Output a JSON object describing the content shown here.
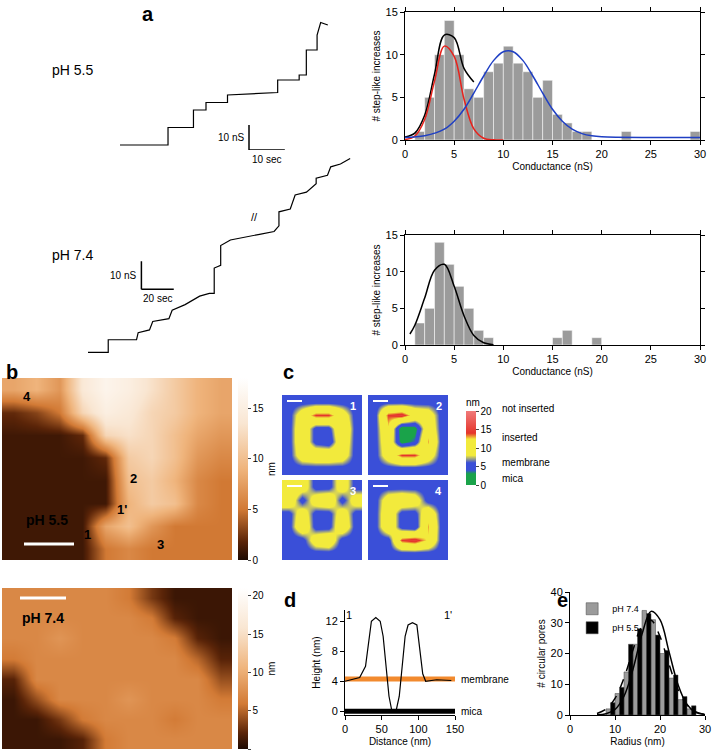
{
  "chart_data": [
    {
      "panel": "a",
      "type": "line",
      "label": "pH 5.5",
      "color": "#000000",
      "x": [
        0,
        13.4,
        13.4,
        20.5,
        20.5,
        24,
        24,
        30,
        30,
        44,
        44,
        50,
        50,
        52,
        52,
        55,
        55,
        56,
        58
      ],
      "values": [
        0,
        0,
        7,
        7,
        14,
        14,
        17,
        17,
        20,
        21,
        26,
        26,
        28,
        28,
        38,
        38,
        44,
        49,
        48
      ],
      "xlim": [
        0,
        60
      ],
      "ylim": [
        -2,
        52
      ],
      "tick_labels": false,
      "scale_bar": {
        "x": 10,
        "y": 10,
        "x_label": "10 sec",
        "y_label": "10 nS"
      }
    },
    {
      "type": "line",
      "label": "pH 7.4",
      "color": "#000000",
      "x": [
        0,
        12.5,
        12.5,
        30,
        31,
        38,
        40,
        50,
        52,
        60,
        69,
        75,
        78,
        78,
        82,
        82,
        88,
        96,
        106,
        115,
        118,
        118,
        125,
        128,
        135,
        141,
        141,
        148,
        150,
        156,
        162
      ],
      "values": [
        0,
        0,
        4.5,
        4.5,
        7,
        8,
        11,
        12,
        15,
        17,
        20,
        21,
        21,
        30,
        31,
        38,
        40,
        41,
        42,
        43,
        45,
        50,
        51,
        56,
        57,
        60,
        62,
        63,
        66,
        67,
        69
      ],
      "xlim": [
        0,
        165
      ],
      "ylim": [
        -2,
        72
      ],
      "tick_labels": false,
      "scale_bar": {
        "x": 20,
        "y": 10,
        "x_label": "20 sec",
        "y_label": "10 nS"
      },
      "annotations": [
        {
          "text": "//",
          "x": 103,
          "y": 48
        }
      ]
    },
    {
      "type": "histogram",
      "color": "#9b9b9b",
      "bins": [
        0,
        1,
        2,
        3,
        4,
        5,
        6,
        7,
        8,
        9,
        10,
        11,
        12,
        13,
        14,
        15,
        16,
        17,
        18,
        19,
        20,
        21,
        22,
        23,
        24,
        25,
        26,
        27,
        28,
        29,
        30
      ],
      "values": [
        0,
        1,
        5,
        10,
        14,
        10,
        6,
        5,
        8,
        9,
        11,
        9,
        8,
        5,
        7,
        3,
        2,
        1,
        1,
        0,
        0,
        0,
        1,
        0,
        0,
        0,
        0,
        0,
        0,
        1
      ],
      "fits": [
        {
          "color": "#000000",
          "x": [
            0,
            1,
            2,
            3,
            4,
            5,
            6,
            7
          ],
          "values": [
            0.35,
            0.8,
            2.9,
            7.7,
            12.3,
            12.0,
            8.4,
            6.8
          ]
        },
        {
          "color": "#e8221c",
          "x": [
            0,
            1,
            2,
            3,
            4,
            5,
            6,
            7,
            8,
            9,
            10
          ],
          "values": [
            0.05,
            0.45,
            2.4,
            6.9,
            11.0,
            9.8,
            4.8,
            1.3,
            0.2,
            0.02,
            0
          ]
        },
        {
          "color": "#1f3fc4",
          "x": [
            0,
            2,
            4,
            5,
            6,
            7,
            8,
            9,
            10,
            11,
            12,
            13,
            14,
            15,
            16,
            17,
            18,
            19,
            20,
            25,
            30
          ],
          "values": [
            0.3,
            0.49,
            1.27,
            2.2,
            3.6,
            5.5,
            7.5,
            9.3,
            10.35,
            10.35,
            9.3,
            7.5,
            5.5,
            3.6,
            2.2,
            1.27,
            0.75,
            0.49,
            0.38,
            0.3,
            0.3
          ]
        }
      ],
      "xlabel": "Conductance (nS)",
      "ylabel": "# step-like increases",
      "xlim": [
        0,
        30
      ],
      "ylim": [
        0,
        15
      ],
      "xticks": [
        0,
        5,
        10,
        15,
        20,
        25,
        30
      ],
      "yticks": [
        0,
        5,
        10,
        15
      ]
    },
    {
      "type": "histogram",
      "color": "#9b9b9b",
      "bins": [
        0,
        1,
        2,
        3,
        4,
        5,
        6,
        7,
        8,
        9,
        10,
        11,
        12,
        13,
        14,
        15,
        16,
        17,
        18,
        19,
        20,
        21,
        22,
        23,
        24,
        25,
        26,
        27,
        28,
        29,
        30
      ],
      "values": [
        0,
        3,
        5,
        14,
        11,
        8,
        5,
        2,
        1,
        0,
        0,
        0,
        0,
        0,
        0,
        1,
        2,
        0,
        0,
        1,
        0,
        0,
        0,
        0,
        0,
        0,
        0,
        0,
        0,
        0
      ],
      "fits": [
        {
          "color": "#000000",
          "x": [
            0.5,
            1,
            2,
            3,
            4,
            5,
            6,
            7,
            8,
            9
          ],
          "values": [
            1.5,
            2.7,
            6.4,
            10.2,
            11.0,
            8.0,
            4.0,
            1.3,
            0.3,
            0.05
          ]
        }
      ],
      "xlabel": "Conductance (nS)",
      "ylabel": "# step-like increases",
      "xlim": [
        0,
        30
      ],
      "ylim": [
        0,
        15
      ],
      "xticks": [
        0,
        5,
        10,
        15,
        20,
        25,
        30
      ],
      "yticks": [
        0,
        5,
        10,
        15
      ]
    },
    {
      "panel": "b",
      "type": "heatmap",
      "label": "pH 5.5",
      "cells": [
        [
          8,
          9,
          7,
          14,
          16,
          15,
          13,
          11,
          9,
          8
        ],
        [
          2,
          3,
          5,
          12,
          15,
          14,
          12,
          11,
          9,
          8
        ],
        [
          1,
          1,
          1,
          2,
          12,
          13,
          12,
          10,
          8,
          7
        ],
        [
          1,
          1,
          1,
          1,
          2,
          11,
          12,
          10,
          7,
          6
        ],
        [
          1,
          1,
          1,
          1,
          1,
          10,
          11,
          9,
          6,
          5
        ],
        [
          1,
          1,
          1,
          1,
          1,
          9,
          11,
          10,
          6,
          5
        ],
        [
          1,
          1,
          1,
          1,
          8,
          10,
          7,
          5,
          5,
          5
        ],
        [
          1,
          1,
          1,
          1,
          5,
          6,
          5,
          5,
          5,
          5
        ]
      ],
      "zlim": [
        0,
        18
      ],
      "zticks": [
        0,
        5,
        10,
        15
      ],
      "colorbar_title": "nm",
      "annotations": [
        {
          "text": "4",
          "x": 0.6,
          "y": 0.3
        },
        {
          "text": "2",
          "x": 5.2,
          "y": 3.9
        },
        {
          "text": "1",
          "x": 3.2,
          "y": 6.4
        },
        {
          "text": "1'",
          "x": 4.7,
          "y": 5.3
        },
        {
          "text": "3",
          "x": 6.4,
          "y": 6.8
        }
      ]
    },
    {
      "type": "heatmap",
      "label": "pH 7.4",
      "cells": [
        [
          7,
          7,
          7,
          7,
          7,
          6,
          3,
          1,
          1,
          1
        ],
        [
          7,
          7,
          7,
          7,
          7,
          7,
          6,
          2,
          1,
          1
        ],
        [
          7,
          7,
          8,
          7,
          7,
          7,
          7,
          6,
          2,
          1
        ],
        [
          6,
          7,
          7,
          7,
          7,
          7,
          7,
          7,
          5,
          2
        ],
        [
          2,
          7,
          7,
          7,
          7,
          7,
          7,
          7,
          7,
          4
        ],
        [
          1,
          4,
          7,
          7,
          7,
          8,
          7,
          7,
          7,
          6
        ],
        [
          1,
          1,
          3,
          6,
          7,
          7,
          7,
          6,
          7,
          7
        ],
        [
          1,
          1,
          1,
          2,
          6,
          7,
          7,
          7,
          7,
          7
        ]
      ],
      "zlim": [
        0,
        21
      ],
      "zticks": [
        0,
        5,
        10,
        15,
        20
      ],
      "colorbar_title": "nm"
    },
    {
      "panel": "c",
      "type": "heatmap",
      "label": "1",
      "cells": [
        [
          5,
          5,
          5,
          5,
          5,
          5
        ],
        [
          5,
          10,
          14,
          14,
          10,
          5
        ],
        [
          5,
          11,
          5,
          5,
          12,
          5
        ],
        [
          5,
          11,
          5,
          4,
          11,
          5
        ],
        [
          5,
          10,
          11,
          11,
          10,
          5
        ],
        [
          5,
          5,
          5,
          5,
          5,
          5
        ]
      ],
      "zlim": [
        0,
        20
      ],
      "zticks": [
        0,
        5,
        10,
        15,
        20
      ],
      "colorbar_title": "nm",
      "levels": [
        {
          "label": "not inserted",
          "value": 17
        },
        {
          "label": "inserted",
          "value": 10.5
        },
        {
          "label": "membrane",
          "value": 5
        },
        {
          "label": "mica",
          "value": 1.5
        }
      ]
    },
    {
      "type": "heatmap",
      "label": "2",
      "cells": [
        [
          5,
          5,
          5,
          5,
          5,
          5
        ],
        [
          5,
          14,
          15,
          11,
          10,
          5
        ],
        [
          5,
          12,
          1,
          2,
          11,
          5
        ],
        [
          5,
          11,
          2,
          4,
          13,
          5
        ],
        [
          5,
          10,
          14,
          14,
          10,
          5
        ],
        [
          5,
          5,
          5,
          5,
          5,
          5
        ]
      ],
      "zlim": [
        0,
        20
      ]
    },
    {
      "type": "heatmap",
      "label": "3",
      "cells": [
        [
          10,
          10,
          5,
          5,
          10,
          5
        ],
        [
          11,
          5,
          10,
          11,
          5,
          10
        ],
        [
          5,
          10,
          5,
          5,
          10,
          5
        ],
        [
          5,
          11,
          5,
          5,
          11,
          5
        ],
        [
          5,
          5,
          10,
          11,
          5,
          5
        ],
        [
          5,
          5,
          5,
          5,
          5,
          5
        ]
      ],
      "zlim": [
        0,
        20
      ]
    },
    {
      "type": "heatmap",
      "label": "4",
      "cells": [
        [
          5,
          5,
          5,
          5,
          5,
          5
        ],
        [
          5,
          10,
          11,
          10,
          5,
          5
        ],
        [
          5,
          11,
          5,
          5,
          11,
          5
        ],
        [
          5,
          11,
          5,
          4,
          13,
          5
        ],
        [
          5,
          5,
          14,
          15,
          12,
          5
        ],
        [
          5,
          5,
          5,
          5,
          5,
          5
        ]
      ],
      "zlim": [
        0,
        20
      ]
    },
    {
      "panel": "d",
      "type": "line",
      "color": "#000000",
      "x": [
        0,
        10,
        20,
        28,
        32,
        36,
        42,
        48,
        52,
        56,
        60,
        64,
        70,
        74,
        78,
        82,
        86,
        92,
        98,
        102,
        106,
        110,
        125,
        145
      ],
      "values": [
        4,
        4.2,
        4.5,
        6,
        9,
        12,
        12.5,
        12,
        10,
        6,
        2,
        0,
        0.2,
        2,
        6,
        10,
        11.5,
        11.8,
        11.5,
        8,
        5,
        4,
        4.2,
        4.1
      ],
      "reference_lines": [
        {
          "name": "membrane",
          "color": "#f28a2e",
          "value": 4.3
        },
        {
          "name": "mica",
          "color": "#000000",
          "value": 0
        }
      ],
      "annotations": [
        {
          "text": "1",
          "x": 5,
          "y": 12.8
        },
        {
          "text": "1'",
          "x": 140,
          "y": 12.8
        }
      ],
      "xlabel": "Distance (nm)",
      "ylabel": "Height (nm)",
      "xlim": [
        0,
        150
      ],
      "ylim": [
        -0.5,
        13.5
      ],
      "xticks": [
        0,
        50,
        100,
        150
      ],
      "yticks": [
        0,
        4,
        8,
        12
      ]
    },
    {
      "panel": "e",
      "type": "histogram",
      "bins": [
        8,
        10,
        12,
        14,
        16,
        18,
        20,
        22,
        24,
        26,
        28
      ],
      "series": [
        {
          "name": "pH 7.4",
          "color": "#9b9b9b",
          "values": [
            2,
            7,
            14,
            23,
            34,
            31,
            20,
            12,
            5,
            2
          ],
          "line_style": "solid",
          "fit": {
            "color": "#000000",
            "x": [
              6,
              8,
              10,
              12,
              14,
              16,
              18,
              20,
              22,
              24,
              26,
              28,
              30
            ],
            "values": [
              0.06,
              0.4,
              1.8,
              6.1,
              14.9,
              26.3,
              33.7,
              31,
              20.6,
              9.9,
              3.4,
              0.8,
              0.2
            ]
          }
        },
        {
          "name": "pH 5.5",
          "color": "#000000",
          "values": [
            4,
            9,
            23,
            28,
            33,
            26,
            21,
            13,
            6,
            3
          ],
          "line_style": "dash",
          "fit": {
            "color": "#000000",
            "x": [
              6,
              8,
              10,
              12,
              14,
              16,
              18,
              20,
              22,
              24,
              26,
              28,
              30
            ],
            "values": [
              0.5,
              1.9,
              5.4,
              12,
              21.2,
              28.9,
              30.8,
              25.5,
              16.5,
              8.3,
              3.3,
              1,
              0.2
            ]
          }
        }
      ],
      "legend": "top left",
      "xlabel": "Radius (nm)",
      "ylabel": "# circular pores",
      "xlim": [
        0,
        30
      ],
      "ylim": [
        0,
        40
      ],
      "xticks": [
        0,
        10,
        20,
        30
      ],
      "yticks": [
        0,
        10,
        20,
        30,
        40
      ]
    }
  ]
}
